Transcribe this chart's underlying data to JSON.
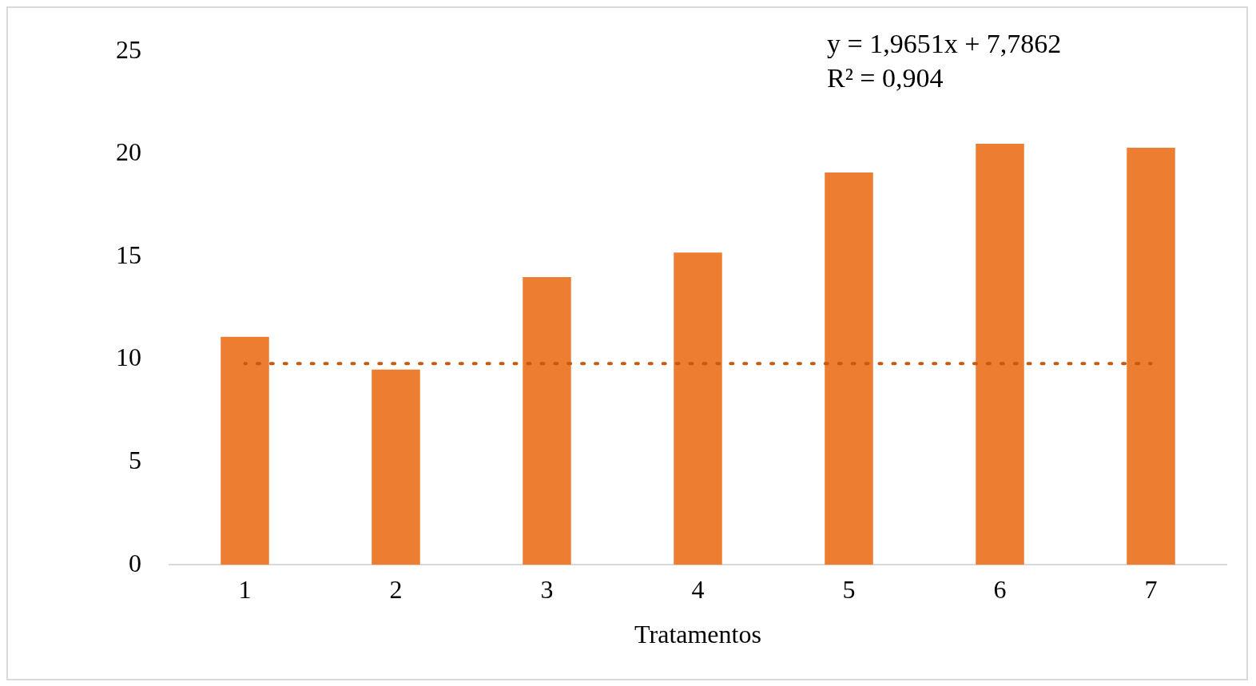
{
  "chart_data": {
    "type": "bar",
    "xlabel": "Tratamentos",
    "categories": [
      "1",
      "2",
      "3",
      "4",
      "5",
      "6",
      "7"
    ],
    "series": [
      {
        "color": "#ed7d31",
        "values": [
          11.1,
          9.5,
          14.0,
          15.2,
          19.1,
          20.5,
          20.3
        ]
      },
      {
        "type": "line",
        "color": "#c55a11",
        "line_style": "dotted",
        "values": [
          9.8,
          9.8,
          9.8,
          9.8,
          9.8,
          9.8,
          9.8
        ]
      }
    ],
    "ylim": [
      0,
      25
    ],
    "yticks": [
      0,
      5,
      10,
      15,
      20,
      25
    ],
    "grid": false,
    "legend": false,
    "annotations": [
      "y = 1,9651x + 7,7862",
      "R² = 0,904"
    ]
  }
}
